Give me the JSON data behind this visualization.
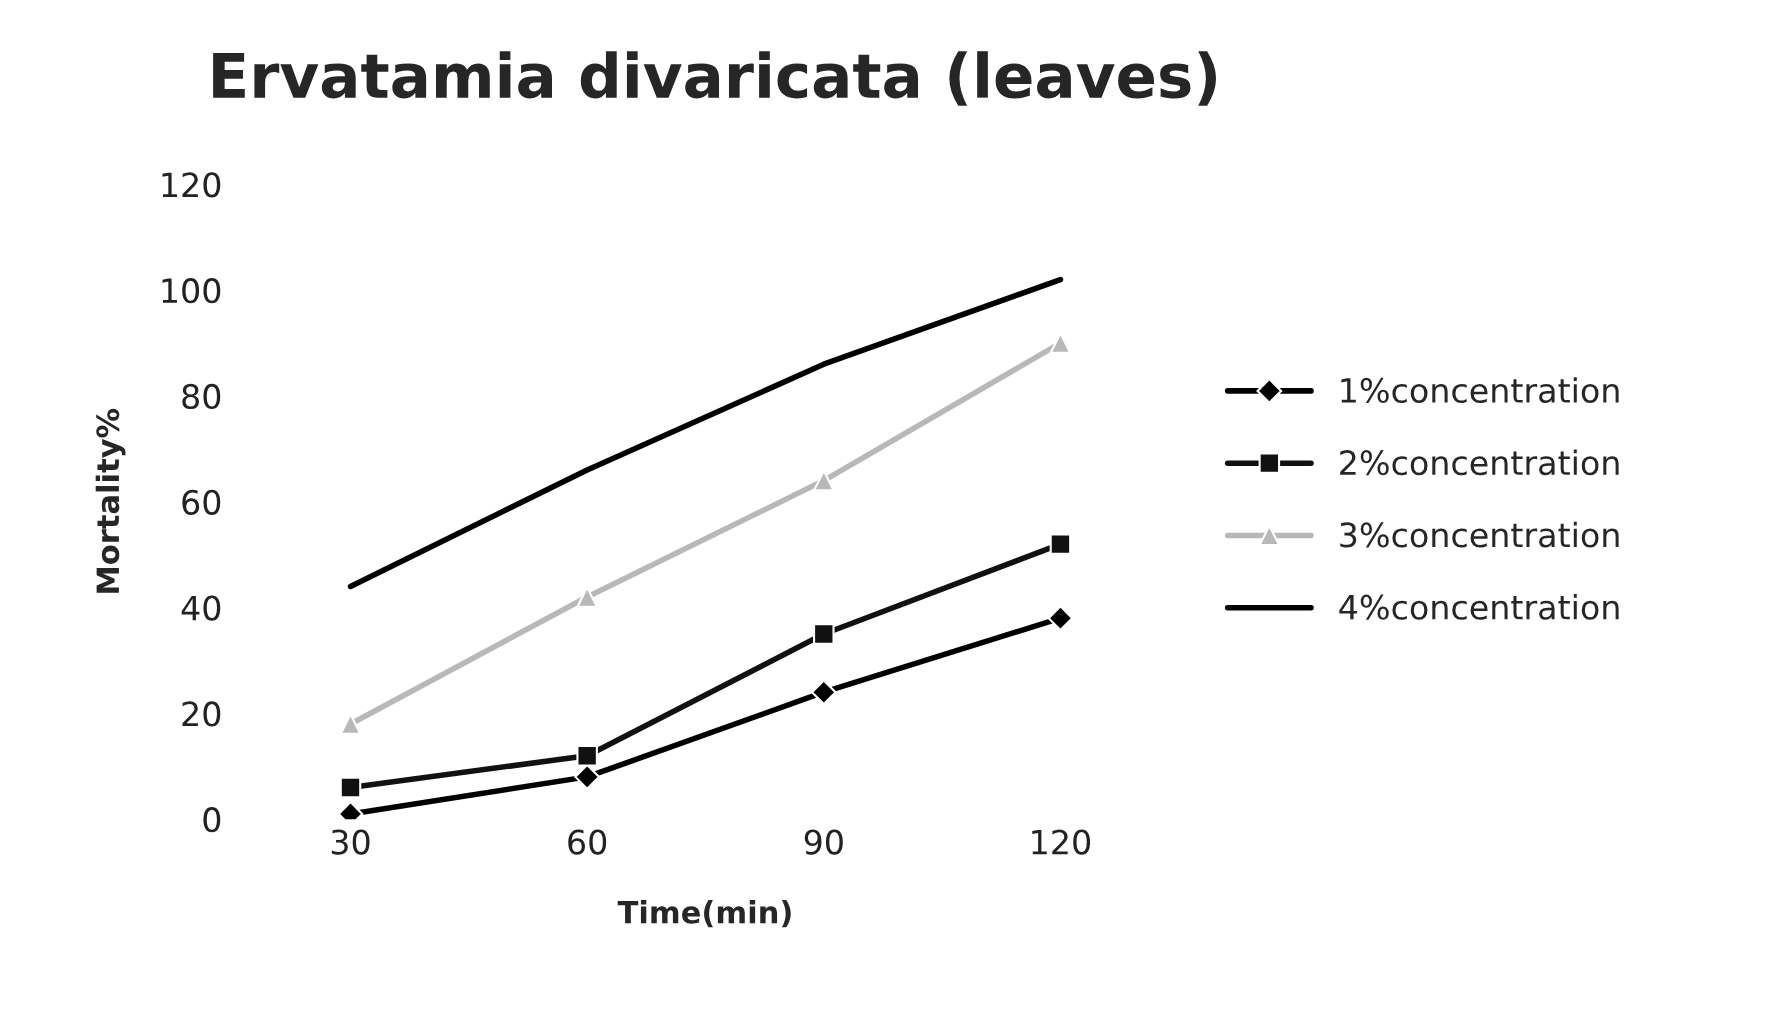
{
  "chart_data": {
    "type": "line",
    "title": "Ervatamia divaricata (leaves)",
    "xlabel": "Time(min)",
    "ylabel": "Mortality%",
    "categories": [
      "30",
      "60",
      "90",
      "120"
    ],
    "series": [
      {
        "name": "1%concentration",
        "color": "#000000",
        "marker": "diamond",
        "values": [
          1,
          8,
          24,
          38
        ]
      },
      {
        "name": "2%concentration",
        "color": "#111111",
        "marker": "square",
        "values": [
          6,
          12,
          35,
          52
        ]
      },
      {
        "name": "3%concentration",
        "color": "#b8b8b8",
        "marker": "triangle",
        "values": [
          18,
          42,
          64,
          90
        ]
      },
      {
        "name": "4%concentration",
        "color": "#000000",
        "marker": "none",
        "values": [
          44,
          66,
          86,
          102
        ]
      }
    ],
    "ylim": [
      0,
      120
    ],
    "yticks": [
      0,
      20,
      40,
      60,
      80,
      100,
      120
    ],
    "grid": false,
    "legend": "right"
  }
}
